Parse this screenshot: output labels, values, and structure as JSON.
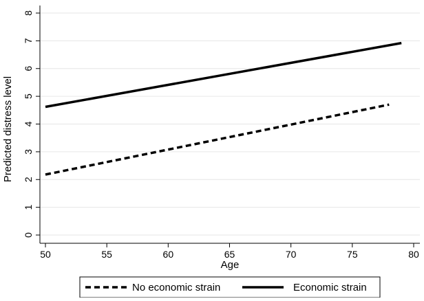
{
  "chart_data": {
    "type": "line",
    "title": "",
    "xlabel": "Age",
    "ylabel": "Predicted distress level",
    "xlim": [
      50,
      80
    ],
    "ylim": [
      0,
      8
    ],
    "xticks": [
      50,
      55,
      60,
      65,
      70,
      75,
      80
    ],
    "yticks": [
      0,
      1,
      2,
      3,
      4,
      5,
      6,
      7,
      8
    ],
    "grid": true,
    "legend_position": "bottom",
    "series": [
      {
        "name": "No economic strain",
        "style": "dashed",
        "color": "#000000",
        "x": [
          50,
          78
        ],
        "y": [
          2.18,
          4.7
        ]
      },
      {
        "name": "Economic strain",
        "style": "solid",
        "color": "#000000",
        "x": [
          50,
          79
        ],
        "y": [
          4.62,
          6.92
        ]
      }
    ]
  }
}
